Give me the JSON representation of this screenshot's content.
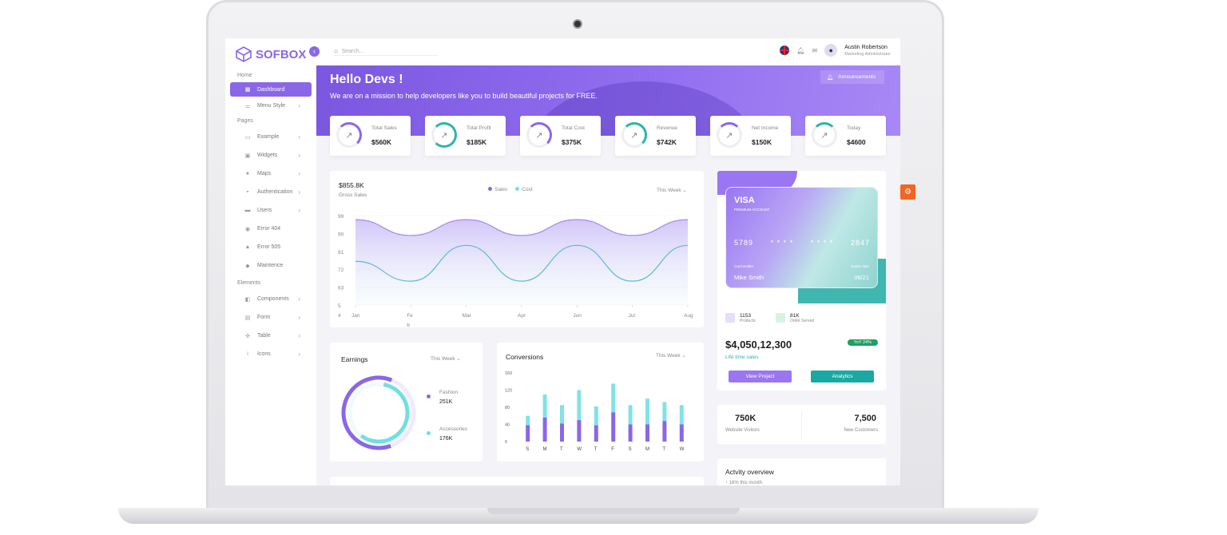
{
  "app": {
    "logo": "SOFBOX",
    "search_placeholder": "Search...",
    "user_name": "Austin Robertson",
    "user_role": "Marketing Administrator"
  },
  "sidebar": {
    "sections": [
      "Home",
      "Pages",
      "Elements"
    ],
    "items": [
      {
        "label": "Dashboard",
        "icon": "grid-icon"
      },
      {
        "label": "Menu Style",
        "icon": "sliders-icon"
      },
      {
        "label": "Example",
        "icon": "browser-icon"
      },
      {
        "label": "Widgets",
        "icon": "widget-icon"
      },
      {
        "label": "Maps",
        "icon": "map-pin-icon"
      },
      {
        "label": "Authentication",
        "icon": "lock-icon"
      },
      {
        "label": "Users",
        "icon": "users-icon"
      },
      {
        "label": "Error 404",
        "icon": "error-icon"
      },
      {
        "label": "Error 505",
        "icon": "warning-icon"
      },
      {
        "label": "Maintence",
        "icon": "tools-icon"
      },
      {
        "label": "Components",
        "icon": "components-icon"
      },
      {
        "label": "Form",
        "icon": "form-icon"
      },
      {
        "label": "Table",
        "icon": "table-icon"
      },
      {
        "label": "Icons",
        "icon": "info-icon"
      }
    ]
  },
  "hero": {
    "title": "Hello Devs !",
    "subtitle": "We are on a mission to help developers like you to build beautiful projects for FREE.",
    "announcements": "Announcements"
  },
  "stats": [
    {
      "label": "Total Sales",
      "value": "$560K",
      "color": "#8a67e8"
    },
    {
      "label": "Total Profit",
      "value": "$185K",
      "color": "#2bb5ae"
    },
    {
      "label": "Total Cost",
      "value": "$375K",
      "color": "#8a67e8"
    },
    {
      "label": "Revenue",
      "value": "$742K",
      "color": "#2bb5ae"
    },
    {
      "label": "Net Income",
      "value": "$150K",
      "color": "#8a67e8"
    },
    {
      "label": "Today",
      "value": "$4600",
      "color": "#2bb5ae"
    }
  ],
  "sales": {
    "amount": "$855.8K",
    "label": "Gross Sales",
    "legend_sales": "Sales",
    "legend_cost": "Cost",
    "period": "This Week"
  },
  "earnings": {
    "title": "Earnings",
    "period": "This Week",
    "fashion_label": "Fashion",
    "fashion_value": "251K",
    "accessories_label": "Accessories",
    "accessories_value": "176K"
  },
  "conversions": {
    "title": "Conversions",
    "period": "This Week"
  },
  "chart_data": [
    {
      "type": "area",
      "series": [
        {
          "name": "Sales"
        },
        {
          "name": "Cost"
        }
      ],
      "x_ticks": [
        "Jan",
        "Fe\nb",
        "Mar",
        "Apr",
        "Jun",
        "Jul",
        "Aug"
      ],
      "y_ticks": [
        "99",
        "90",
        "81",
        "72",
        "63",
        "5\n4"
      ],
      "sales_values": [
        97,
        89,
        97,
        89,
        97,
        89,
        97
      ],
      "cost_values": [
        76,
        66,
        84,
        66,
        84,
        66,
        84
      ]
    },
    {
      "type": "bar",
      "categories": [
        "S",
        "M",
        "T",
        "W",
        "T",
        "F",
        "S",
        "M",
        "T",
        "W"
      ],
      "y_ticks": [
        "160",
        "120",
        "80",
        "40",
        "0"
      ],
      "ylim": [
        0,
        160
      ],
      "series": [
        {
          "values": [
            38,
            56,
            42,
            50,
            38,
            68,
            40,
            40,
            48,
            40
          ]
        },
        {
          "values": [
            60,
            110,
            85,
            120,
            82,
            135,
            85,
            100,
            92,
            85
          ]
        }
      ]
    },
    {
      "type": "pie",
      "slices": [
        {
          "label": "Fashion",
          "value": 251
        },
        {
          "label": "Accessories",
          "value": 176
        }
      ]
    }
  ],
  "visa": {
    "brand": "VISA",
    "type": "PREMIUM ACCOUNT",
    "n1": "5789",
    "n2": "* * * *",
    "n3": "* * * *",
    "n4": "2847",
    "holder_label": "Card Holder",
    "holder": "Mike Smith",
    "expiry_label": "Expire date",
    "expiry": "06/21"
  },
  "summary": {
    "products_value": "1153",
    "products_label": "Products",
    "orders_value": "81K",
    "orders_label": "Order Served",
    "lifetime_value": "$4,050,12,300",
    "lifetime_label": "Life time sales",
    "yoy": "YoY 24%",
    "view_project": "View Project",
    "analytics": "Analytics"
  },
  "visitors": {
    "v1": "750K",
    "l1": "Website Visitors",
    "v2": "7,500",
    "l2": "New Customers"
  },
  "activity": {
    "title": "Actvity overview",
    "sub": "16% this month"
  },
  "colors": {
    "accent": "#8a67e8",
    "teal": "#2bb5ae",
    "green": "#1aa260",
    "orange": "#f26522"
  }
}
